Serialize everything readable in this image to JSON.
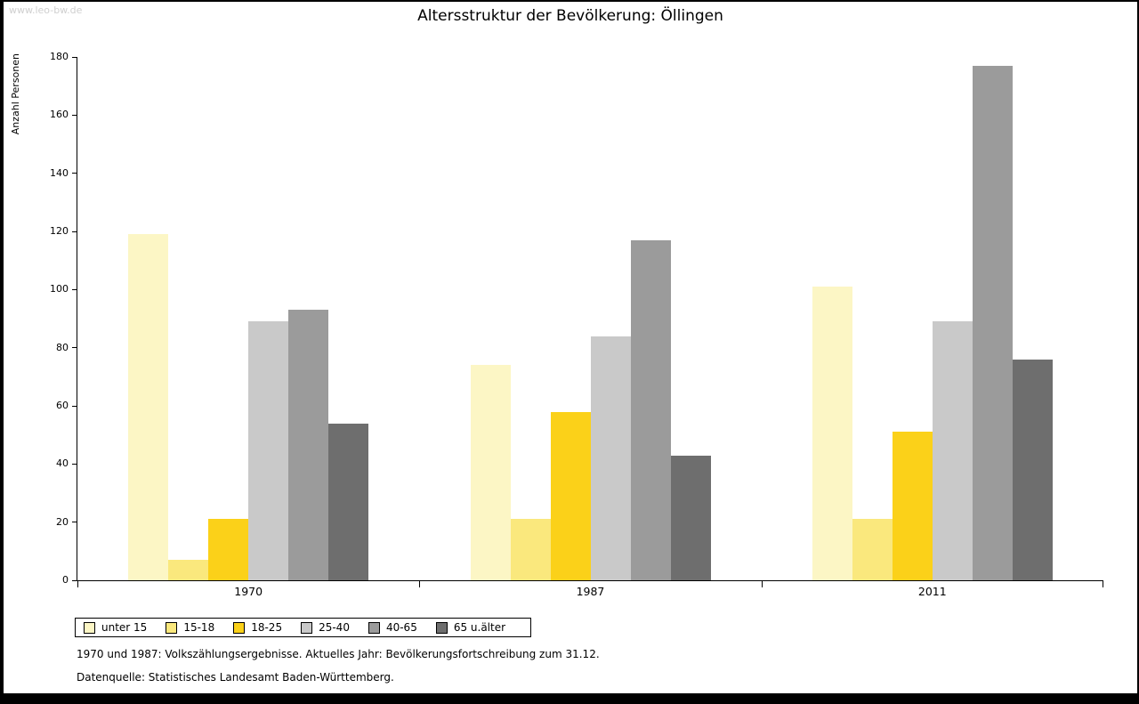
{
  "page": {
    "watermark": "www.leo-bw.de",
    "title": "Altersstruktur der Bevölkerung: Öllingen",
    "footnotes": [
      "1970 und 1987: Volkszählungsergebnisse. Aktuelles Jahr: Bevölkerungsfortschreibung zum 31.12.",
      "Datenquelle: Statistisches Landesamt Baden-Württemberg."
    ]
  },
  "chart_data": {
    "type": "bar",
    "title": "Altersstruktur der Bevölkerung: Öllingen",
    "xlabel": "",
    "ylabel": "Anzahl Personen",
    "ylim": [
      0,
      180
    ],
    "ytick_step": 20,
    "grid": false,
    "legend_position": "bottom-left",
    "categories": [
      "1970",
      "1987",
      "2011"
    ],
    "series": [
      {
        "name": "unter 15",
        "color": "#FCF6C5",
        "values": [
          119,
          74,
          101
        ]
      },
      {
        "name": "15-18",
        "color": "#FAE87D",
        "values": [
          7,
          21,
          21
        ]
      },
      {
        "name": "18-25",
        "color": "#FBD119",
        "values": [
          21,
          58,
          51
        ]
      },
      {
        "name": "25-40",
        "color": "#C9C9C9",
        "values": [
          89,
          84,
          89
        ]
      },
      {
        "name": "40-65",
        "color": "#9B9B9B",
        "values": [
          93,
          117,
          177
        ]
      },
      {
        "name": "65 u.älter",
        "color": "#6E6E6E",
        "values": [
          54,
          43,
          76
        ]
      }
    ]
  }
}
